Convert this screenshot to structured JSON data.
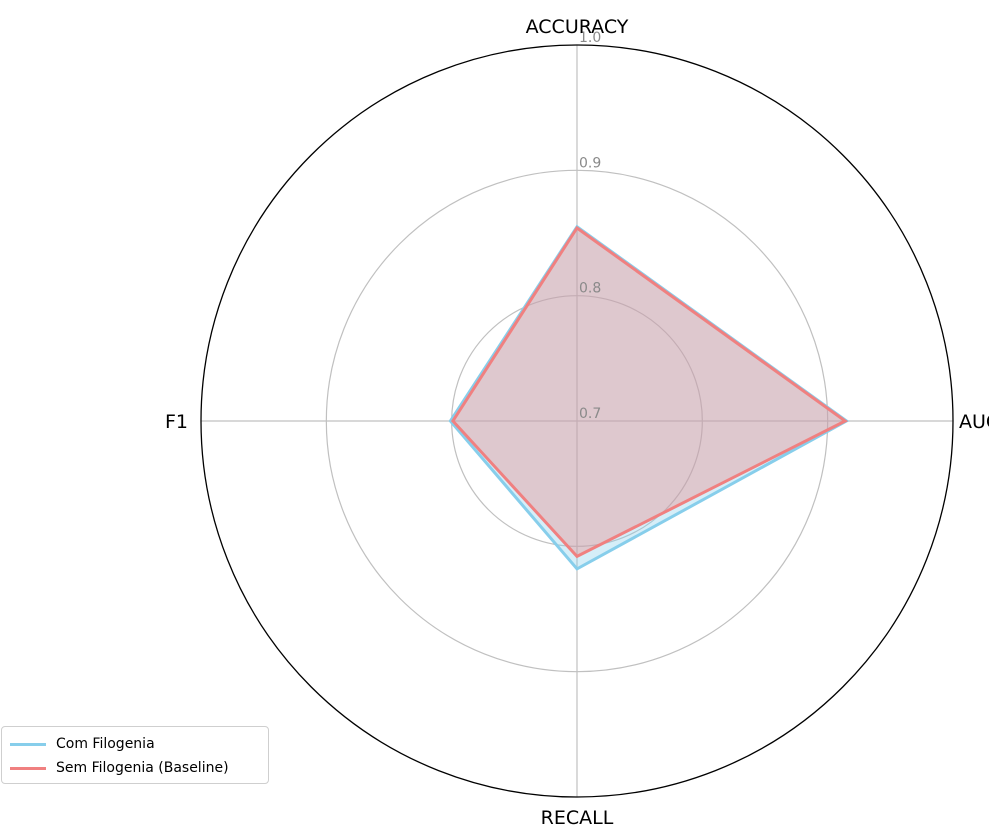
{
  "chart_data": {
    "type": "radar",
    "axes": [
      "ACCURACY",
      "AUC",
      "RECALL",
      "F1"
    ],
    "rlim": [
      0.7,
      1.0
    ],
    "rticks": [
      0.7,
      0.8,
      0.9,
      1.0
    ],
    "rtick_labels": [
      "0.7",
      "0.8",
      "0.9",
      "1.0"
    ],
    "grid": true,
    "legend_position": "lower-left",
    "series": [
      {
        "name": "Com Filogenia",
        "values": [
          0.855,
          0.915,
          0.818,
          0.801
        ],
        "color": "#87ceeb"
      },
      {
        "name": "Sem Filogenia (Baseline)",
        "values": [
          0.854,
          0.914,
          0.808,
          0.799
        ],
        "color": "#f08080"
      }
    ]
  }
}
